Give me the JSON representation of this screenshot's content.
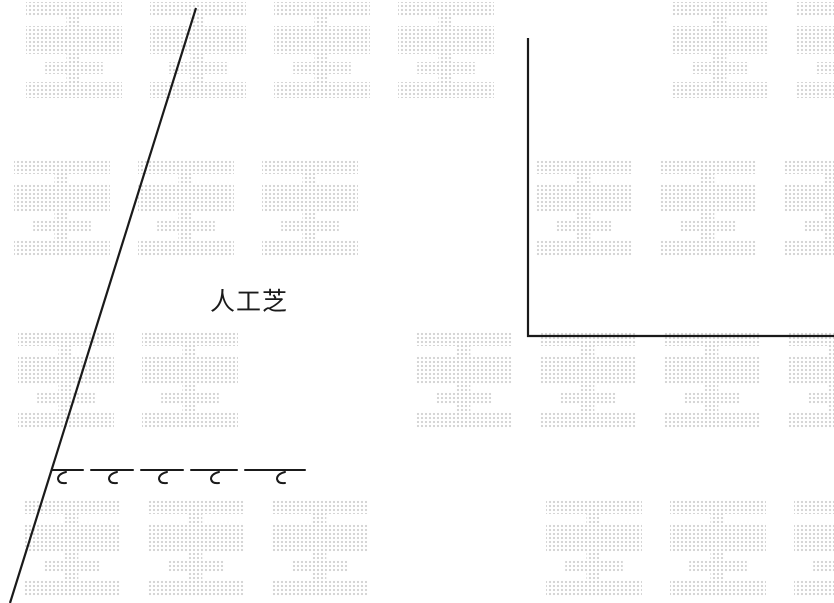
{
  "figure": {
    "material_label": "人工芝"
  },
  "watermark": {
    "text": "轉載禁止",
    "color": "#cfcfcf"
  }
}
